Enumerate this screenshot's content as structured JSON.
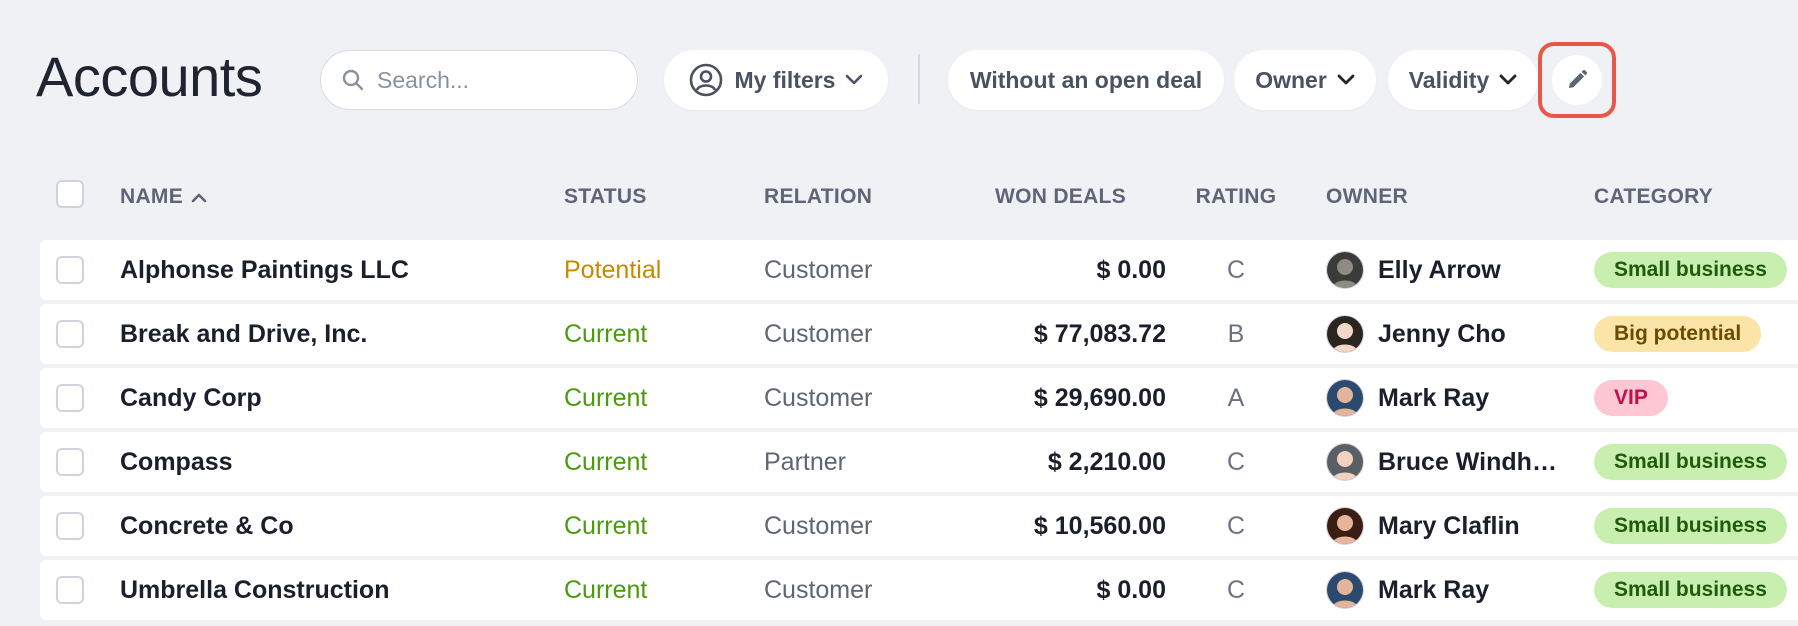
{
  "header": {
    "title": "Accounts",
    "search_placeholder": "Search...",
    "my_filters_label": "My filters",
    "filters": [
      "Without an open deal",
      "Owner",
      "Validity"
    ]
  },
  "columns": {
    "name": "NAME",
    "status": "STATUS",
    "relation": "RELATION",
    "won_deals": "WON DEALS",
    "rating": "RATING",
    "owner": "OWNER",
    "category": "CATEGORY"
  },
  "icons": {
    "search": "search-icon",
    "filters": "user-circle-icon",
    "chevron": "chevron-down-icon",
    "sort": "chevron-up-icon",
    "edit": "pencil-icon"
  },
  "colors": {
    "status_potential": "#c68a00",
    "status_current": "#4a9a0c",
    "badge_small_business_bg": "#c8efb0",
    "badge_small_business_fg": "#1f5b0c",
    "badge_big_potential_bg": "#fbe4a8",
    "badge_big_potential_fg": "#6b4b00",
    "badge_vip_bg": "#ffc7d4",
    "badge_vip_fg": "#c4104a",
    "highlight": "#e8574a"
  },
  "rows": [
    {
      "name": "Alphonse Paintings LLC",
      "status": "Potential",
      "relation": "Customer",
      "won_deals": "$ 0.00",
      "rating": "C",
      "owner": "Elly Arrow",
      "category": "Small business"
    },
    {
      "name": "Break and Drive, Inc.",
      "status": "Current",
      "relation": "Customer",
      "won_deals": "$ 77,083.72",
      "rating": "B",
      "owner": "Jenny Cho",
      "category": "Big potential"
    },
    {
      "name": "Candy Corp",
      "status": "Current",
      "relation": "Customer",
      "won_deals": "$ 29,690.00",
      "rating": "A",
      "owner": "Mark Ray",
      "category": "VIP"
    },
    {
      "name": "Compass",
      "status": "Current",
      "relation": "Partner",
      "won_deals": "$ 2,210.00",
      "rating": "C",
      "owner": "Bruce Windh…",
      "category": "Small business"
    },
    {
      "name": "Concrete & Co",
      "status": "Current",
      "relation": "Customer",
      "won_deals": "$ 10,560.00",
      "rating": "C",
      "owner": "Mary Claflin",
      "category": "Small business"
    },
    {
      "name": "Umbrella Construction",
      "status": "Current",
      "relation": "Customer",
      "won_deals": "$ 0.00",
      "rating": "C",
      "owner": "Mark Ray",
      "category": "Small business"
    }
  ]
}
